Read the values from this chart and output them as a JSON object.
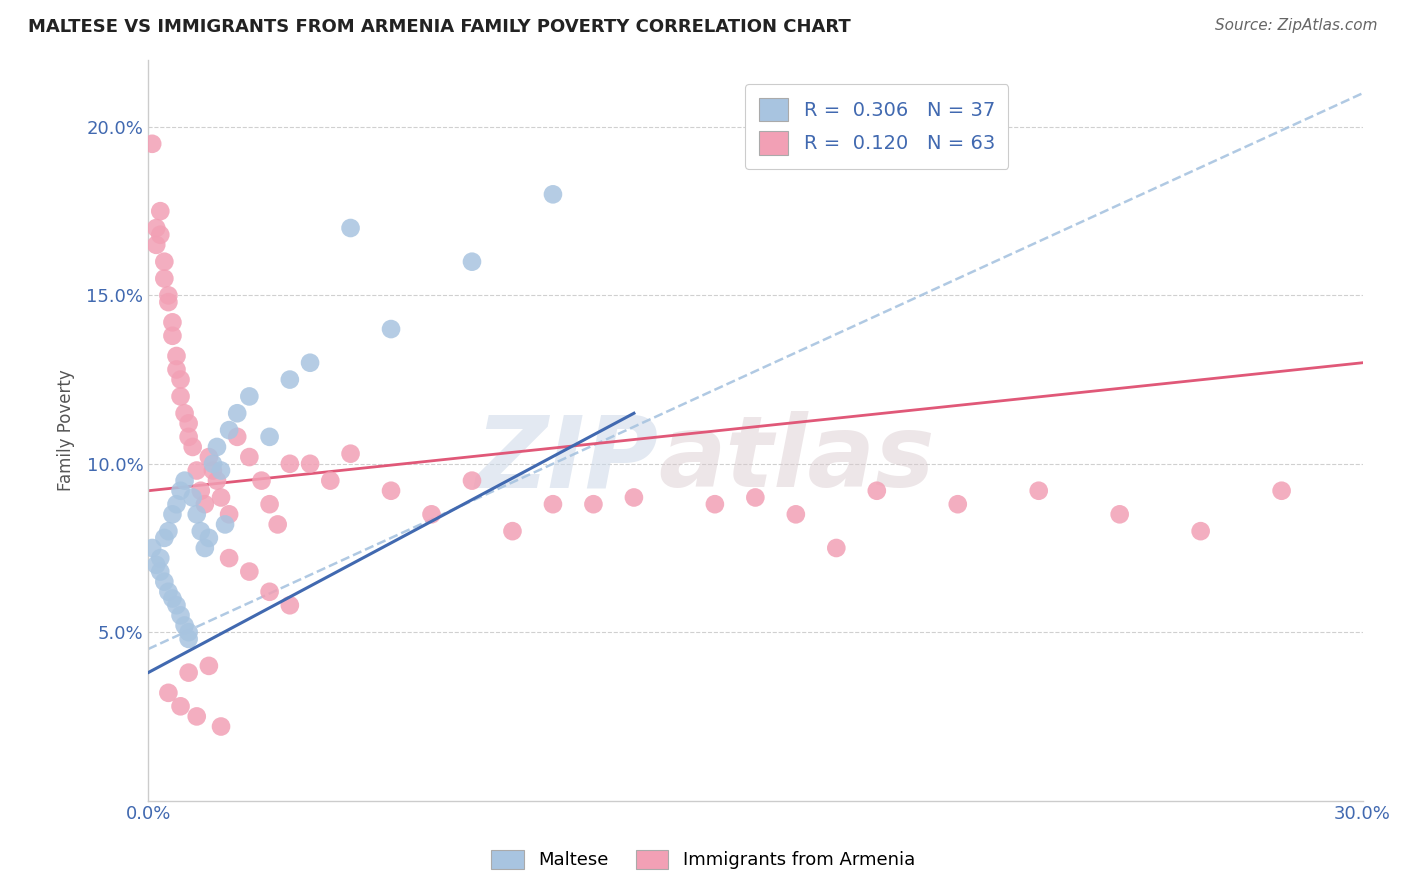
{
  "title": "MALTESE VS IMMIGRANTS FROM ARMENIA FAMILY POVERTY CORRELATION CHART",
  "source": "Source: ZipAtlas.com",
  "ylabel": "Family Poverty",
  "xlim": [
    0.0,
    0.3
  ],
  "ylim": [
    0.0,
    0.22
  ],
  "xticks": [
    0.0,
    0.05,
    0.1,
    0.15,
    0.2,
    0.25,
    0.3
  ],
  "xtick_labels": [
    "0.0%",
    "",
    "",
    "",
    "",
    "",
    "30.0%"
  ],
  "yticks": [
    0.05,
    0.1,
    0.15,
    0.2
  ],
  "ytick_labels": [
    "5.0%",
    "10.0%",
    "15.0%",
    "20.0%"
  ],
  "legend_labels": [
    "Maltese",
    "Immigrants from Armenia"
  ],
  "blue_color": "#a8c4e0",
  "pink_color": "#f2a0b5",
  "blue_line_color": "#4169b0",
  "pink_line_color": "#e05878",
  "dashed_line_color": "#a8c4e0",
  "r_blue": 0.306,
  "n_blue": 37,
  "r_pink": 0.12,
  "n_pink": 63,
  "blue_scatter_x": [
    0.001,
    0.002,
    0.003,
    0.003,
    0.004,
    0.004,
    0.005,
    0.005,
    0.006,
    0.006,
    0.007,
    0.007,
    0.008,
    0.008,
    0.009,
    0.009,
    0.01,
    0.01,
    0.011,
    0.012,
    0.013,
    0.014,
    0.015,
    0.016,
    0.017,
    0.018,
    0.019,
    0.02,
    0.022,
    0.025,
    0.03,
    0.035,
    0.04,
    0.05,
    0.06,
    0.08,
    0.1
  ],
  "blue_scatter_y": [
    0.075,
    0.07,
    0.068,
    0.072,
    0.065,
    0.078,
    0.062,
    0.08,
    0.06,
    0.085,
    0.058,
    0.088,
    0.055,
    0.092,
    0.052,
    0.095,
    0.05,
    0.048,
    0.09,
    0.085,
    0.08,
    0.075,
    0.078,
    0.1,
    0.105,
    0.098,
    0.082,
    0.11,
    0.115,
    0.12,
    0.108,
    0.125,
    0.13,
    0.17,
    0.14,
    0.16,
    0.18
  ],
  "pink_scatter_x": [
    0.001,
    0.002,
    0.002,
    0.003,
    0.003,
    0.004,
    0.004,
    0.005,
    0.005,
    0.006,
    0.006,
    0.007,
    0.007,
    0.008,
    0.008,
    0.009,
    0.01,
    0.01,
    0.011,
    0.012,
    0.013,
    0.014,
    0.015,
    0.016,
    0.017,
    0.018,
    0.02,
    0.022,
    0.025,
    0.028,
    0.03,
    0.032,
    0.035,
    0.04,
    0.045,
    0.05,
    0.06,
    0.07,
    0.08,
    0.09,
    0.1,
    0.11,
    0.12,
    0.14,
    0.15,
    0.16,
    0.17,
    0.18,
    0.2,
    0.22,
    0.24,
    0.26,
    0.28,
    0.025,
    0.03,
    0.035,
    0.02,
    0.015,
    0.01,
    0.005,
    0.008,
    0.012,
    0.018
  ],
  "pink_scatter_y": [
    0.195,
    0.17,
    0.165,
    0.175,
    0.168,
    0.16,
    0.155,
    0.15,
    0.148,
    0.142,
    0.138,
    0.132,
    0.128,
    0.125,
    0.12,
    0.115,
    0.108,
    0.112,
    0.105,
    0.098,
    0.092,
    0.088,
    0.102,
    0.098,
    0.095,
    0.09,
    0.085,
    0.108,
    0.102,
    0.095,
    0.088,
    0.082,
    0.1,
    0.1,
    0.095,
    0.103,
    0.092,
    0.085,
    0.095,
    0.08,
    0.088,
    0.088,
    0.09,
    0.088,
    0.09,
    0.085,
    0.075,
    0.092,
    0.088,
    0.092,
    0.085,
    0.08,
    0.092,
    0.068,
    0.062,
    0.058,
    0.072,
    0.04,
    0.038,
    0.032,
    0.028,
    0.025,
    0.022
  ],
  "watermark_text": "ZIP",
  "watermark_text2": "atlas",
  "background_color": "#ffffff",
  "grid_color": "#d0d0d0",
  "blue_line_x0": 0.0,
  "blue_line_y0": 0.045,
  "blue_line_x1": 0.3,
  "blue_line_y1": 0.21,
  "pink_line_x0": 0.0,
  "pink_line_y0": 0.092,
  "pink_line_x1": 0.3,
  "pink_line_y1": 0.13
}
